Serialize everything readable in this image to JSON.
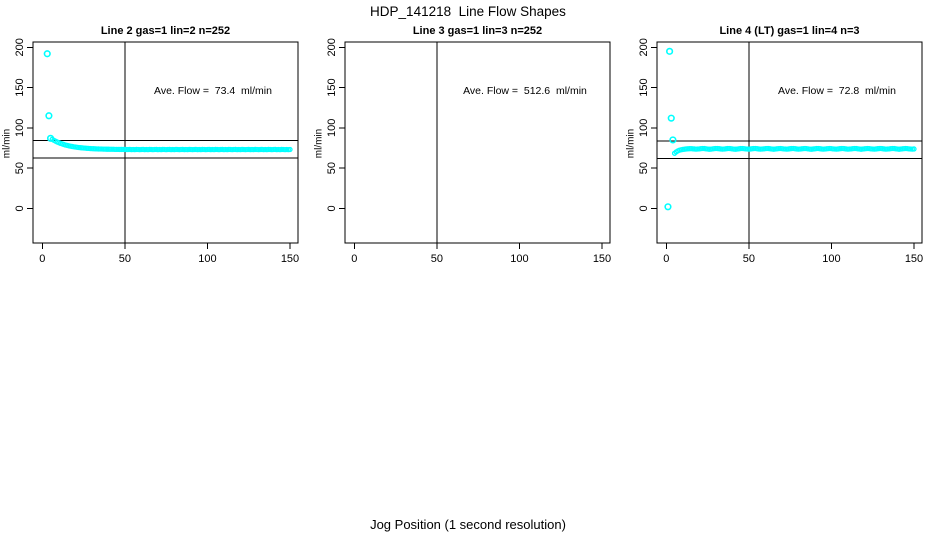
{
  "header": {
    "title": "HDP_141218  Line Flow Shapes"
  },
  "footer": {
    "xlabel": "Jog Position (1 second resolution)"
  },
  "colors": {
    "point": "#00ffff",
    "axis": "#000000",
    "background": "#ffffff"
  },
  "chart_data": [
    {
      "type": "scatter",
      "title": "Line 2 gas=1 lin=2 n=252",
      "ylabel": "ml/min",
      "xlabel": "Jog Position (1 second resolution)",
      "annotation": "Ave. Flow =  73.4  ml/min",
      "ave_flow": 73.4,
      "n": 252,
      "xticks": [
        0,
        50,
        100,
        150
      ],
      "yticks": [
        0,
        50,
        100,
        150,
        200
      ],
      "xlim": [
        -5.5,
        155
      ],
      "ylim": [
        -43,
        207
      ],
      "grid": false,
      "legend": "none",
      "vline_x": 50,
      "hlines": [
        84.4,
        62.4
      ],
      "outlier_points": [
        [
          3,
          192
        ],
        [
          4,
          115
        ],
        [
          5,
          87
        ]
      ],
      "band_points": [
        [
          6,
          85.8
        ],
        [
          7,
          84.6
        ],
        [
          8,
          83.5
        ],
        [
          9,
          82.5
        ],
        [
          10,
          81.6
        ],
        [
          11,
          80.8
        ],
        [
          12,
          80.1
        ],
        [
          13,
          79.4
        ],
        [
          14,
          78.7
        ],
        [
          15,
          78.2
        ],
        [
          16,
          77.7
        ],
        [
          17,
          77.3
        ],
        [
          18,
          76.9
        ],
        [
          19,
          76.5
        ],
        [
          20,
          76.2
        ],
        [
          21,
          75.9
        ],
        [
          22,
          75.6
        ],
        [
          23,
          75.4
        ],
        [
          24,
          75.2
        ],
        [
          25,
          75.0
        ],
        [
          26,
          74.8
        ],
        [
          27,
          74.6
        ],
        [
          28,
          74.5
        ],
        [
          29,
          74.3
        ],
        [
          30,
          74.2
        ],
        [
          31,
          74.1
        ],
        [
          32,
          74.0
        ],
        [
          33,
          73.9
        ],
        [
          34,
          73.8
        ],
        [
          35,
          73.7
        ],
        [
          36,
          73.7
        ],
        [
          37,
          73.6
        ],
        [
          38,
          73.6
        ],
        [
          39,
          73.5
        ],
        [
          40,
          73.5
        ],
        [
          41,
          73.4
        ],
        [
          42,
          73.4
        ],
        [
          43,
          73.4
        ],
        [
          44,
          73.3
        ],
        [
          45,
          73.3
        ],
        [
          46,
          73.3
        ],
        [
          47,
          73.2
        ],
        [
          48,
          73.2
        ],
        [
          49,
          73.2
        ],
        [
          50,
          73.2
        ],
        [
          51,
          73.1
        ],
        [
          52,
          73.1
        ],
        [
          53,
          73.2
        ],
        [
          54,
          73.0
        ],
        [
          55,
          73.1
        ],
        [
          56,
          73.0
        ],
        [
          57,
          73.2
        ],
        [
          58,
          73.1
        ],
        [
          59,
          73.0
        ],
        [
          60,
          73.1
        ],
        [
          61,
          73.2
        ],
        [
          62,
          73.0
        ],
        [
          63,
          73.1
        ],
        [
          64,
          73.0
        ],
        [
          65,
          73.2
        ],
        [
          66,
          73.1
        ],
        [
          67,
          73.0
        ],
        [
          68,
          73.1
        ],
        [
          69,
          73.2
        ],
        [
          70,
          73.0
        ],
        [
          71,
          73.1
        ],
        [
          72,
          73.0
        ],
        [
          73,
          73.2
        ],
        [
          74,
          73.1
        ],
        [
          75,
          73.0
        ],
        [
          76,
          73.1
        ],
        [
          77,
          73.2
        ],
        [
          78,
          73.0
        ],
        [
          79,
          73.1
        ],
        [
          80,
          73.0
        ],
        [
          81,
          73.2
        ],
        [
          82,
          73.1
        ],
        [
          83,
          73.0
        ],
        [
          84,
          73.1
        ],
        [
          85,
          73.2
        ],
        [
          86,
          73.0
        ],
        [
          87,
          73.1
        ],
        [
          88,
          73.0
        ],
        [
          89,
          73.2
        ],
        [
          90,
          73.1
        ],
        [
          91,
          73.0
        ],
        [
          92,
          73.1
        ],
        [
          93,
          73.2
        ],
        [
          94,
          73.0
        ],
        [
          95,
          73.1
        ],
        [
          96,
          73.0
        ],
        [
          97,
          73.2
        ],
        [
          98,
          73.1
        ],
        [
          99,
          73.0
        ],
        [
          100,
          73.1
        ],
        [
          101,
          73.2
        ],
        [
          102,
          73.0
        ],
        [
          103,
          73.1
        ],
        [
          104,
          73.0
        ],
        [
          105,
          73.2
        ],
        [
          106,
          73.1
        ],
        [
          107,
          73.0
        ],
        [
          108,
          73.1
        ],
        [
          109,
          73.2
        ],
        [
          110,
          73.0
        ],
        [
          111,
          73.1
        ],
        [
          112,
          73.0
        ],
        [
          113,
          73.2
        ],
        [
          114,
          73.1
        ],
        [
          115,
          73.0
        ],
        [
          116,
          73.1
        ],
        [
          117,
          73.2
        ],
        [
          118,
          73.0
        ],
        [
          119,
          73.1
        ],
        [
          120,
          73.0
        ],
        [
          121,
          73.2
        ],
        [
          122,
          73.1
        ],
        [
          123,
          73.0
        ],
        [
          124,
          73.1
        ],
        [
          125,
          73.2
        ],
        [
          126,
          73.0
        ],
        [
          127,
          73.1
        ],
        [
          128,
          73.0
        ],
        [
          129,
          73.2
        ],
        [
          130,
          73.1
        ],
        [
          131,
          73.0
        ],
        [
          132,
          73.1
        ],
        [
          133,
          73.2
        ],
        [
          134,
          73.0
        ],
        [
          135,
          73.1
        ],
        [
          136,
          73.0
        ],
        [
          137,
          73.2
        ],
        [
          138,
          73.1
        ],
        [
          139,
          73.0
        ],
        [
          140,
          73.1
        ],
        [
          141,
          73.2
        ],
        [
          142,
          73.0
        ],
        [
          143,
          73.1
        ],
        [
          144,
          73.0
        ],
        [
          145,
          73.2
        ],
        [
          146,
          73.1
        ],
        [
          147,
          73.0
        ],
        [
          148,
          73.1
        ],
        [
          149,
          73.0
        ],
        [
          150,
          73.1
        ]
      ]
    },
    {
      "type": "scatter",
      "title": "Line 3 gas=1 lin=3 n=252",
      "ylabel": "ml/min",
      "xlabel": "Jog Position (1 second resolution)",
      "annotation": "Ave. Flow =  512.6  ml/min",
      "ave_flow": 512.6,
      "n": 252,
      "xticks": [
        0,
        50,
        100,
        150
      ],
      "yticks": [
        0,
        50,
        100,
        150,
        200
      ],
      "xlim": [
        -5.5,
        155
      ],
      "ylim": [
        -43,
        207
      ],
      "grid": false,
      "legend": "none",
      "vline_x": 50,
      "hlines": [],
      "outlier_points": [],
      "band_points": []
    },
    {
      "type": "scatter",
      "title": "Line 4 (LT) gas=1 lin=4 n=3",
      "ylabel": "ml/min",
      "xlabel": "Jog Position (1 second resolution)",
      "annotation": "Ave. Flow =  72.8  ml/min",
      "ave_flow": 72.8,
      "n": 3,
      "xticks": [
        0,
        50,
        100,
        150
      ],
      "yticks": [
        0,
        50,
        100,
        150,
        200
      ],
      "xlim": [
        -5.5,
        155
      ],
      "ylim": [
        -43,
        207
      ],
      "grid": false,
      "legend": "none",
      "vline_x": 50,
      "hlines": [
        83.7,
        61.9
      ],
      "outlier_points": [
        [
          1,
          2
        ],
        [
          2,
          195
        ],
        [
          3,
          112
        ],
        [
          4,
          85
        ]
      ],
      "band_points": [
        [
          5,
          68.4
        ],
        [
          6,
          70.1
        ],
        [
          7,
          71.4
        ],
        [
          8,
          72.3
        ],
        [
          9,
          72.8
        ],
        [
          10,
          73.2
        ],
        [
          11,
          73.5
        ],
        [
          12,
          73.8
        ],
        [
          13,
          74.0
        ],
        [
          14,
          74.1
        ],
        [
          15,
          74.2
        ],
        [
          16,
          74.0
        ],
        [
          17,
          73.8
        ],
        [
          18,
          73.6
        ],
        [
          19,
          73.7
        ],
        [
          20,
          73.9
        ],
        [
          21,
          74.2
        ],
        [
          22,
          74.4
        ],
        [
          23,
          74.3
        ],
        [
          24,
          74.0
        ],
        [
          25,
          73.7
        ],
        [
          26,
          73.5
        ],
        [
          27,
          73.6
        ],
        [
          28,
          73.9
        ],
        [
          29,
          74.2
        ],
        [
          30,
          74.4
        ],
        [
          31,
          74.3
        ],
        [
          32,
          74.1
        ],
        [
          33,
          73.8
        ],
        [
          34,
          73.6
        ],
        [
          35,
          73.7
        ],
        [
          36,
          74.0
        ],
        [
          37,
          74.3
        ],
        [
          38,
          74.4
        ],
        [
          39,
          74.2
        ],
        [
          40,
          73.9
        ],
        [
          41,
          73.6
        ],
        [
          42,
          73.5
        ],
        [
          43,
          73.7
        ],
        [
          44,
          74.0
        ],
        [
          45,
          74.3
        ],
        [
          46,
          74.4
        ],
        [
          47,
          74.2
        ],
        [
          48,
          73.9
        ],
        [
          49,
          73.7
        ],
        [
          50,
          73.6
        ],
        [
          51,
          73.8
        ],
        [
          52,
          74.1
        ],
        [
          53,
          74.3
        ],
        [
          54,
          74.4
        ],
        [
          55,
          74.1
        ],
        [
          56,
          73.8
        ],
        [
          57,
          73.6
        ],
        [
          58,
          73.7
        ],
        [
          59,
          73.9
        ],
        [
          60,
          74.2
        ],
        [
          61,
          74.4
        ],
        [
          62,
          74.3
        ],
        [
          63,
          74.0
        ],
        [
          64,
          73.7
        ],
        [
          65,
          73.5
        ],
        [
          66,
          73.7
        ],
        [
          67,
          74.0
        ],
        [
          68,
          74.2
        ],
        [
          69,
          74.4
        ],
        [
          70,
          74.2
        ],
        [
          71,
          73.9
        ],
        [
          72,
          73.7
        ],
        [
          73,
          73.6
        ],
        [
          74,
          73.8
        ],
        [
          75,
          74.1
        ],
        [
          76,
          74.3
        ],
        [
          77,
          74.4
        ],
        [
          78,
          74.1
        ],
        [
          79,
          73.8
        ],
        [
          80,
          73.6
        ],
        [
          81,
          73.7
        ],
        [
          82,
          74.0
        ],
        [
          83,
          74.2
        ],
        [
          84,
          74.4
        ],
        [
          85,
          74.2
        ],
        [
          86,
          73.9
        ],
        [
          87,
          73.6
        ],
        [
          88,
          73.5
        ],
        [
          89,
          73.8
        ],
        [
          90,
          74.0
        ],
        [
          91,
          74.3
        ],
        [
          92,
          74.4
        ],
        [
          93,
          74.1
        ],
        [
          94,
          73.8
        ],
        [
          95,
          73.6
        ],
        [
          96,
          73.7
        ],
        [
          97,
          74.0
        ],
        [
          98,
          74.2
        ],
        [
          99,
          74.4
        ],
        [
          100,
          74.2
        ],
        [
          101,
          73.9
        ],
        [
          102,
          73.7
        ],
        [
          103,
          73.6
        ],
        [
          104,
          73.8
        ],
        [
          105,
          74.1
        ],
        [
          106,
          74.3
        ],
        [
          107,
          74.4
        ],
        [
          108,
          74.1
        ],
        [
          109,
          73.8
        ],
        [
          110,
          73.6
        ],
        [
          111,
          73.7
        ],
        [
          112,
          73.9
        ],
        [
          113,
          74.2
        ],
        [
          114,
          74.4
        ],
        [
          115,
          74.3
        ],
        [
          116,
          74.0
        ],
        [
          117,
          73.7
        ],
        [
          118,
          73.5
        ],
        [
          119,
          73.7
        ],
        [
          120,
          74.0
        ],
        [
          121,
          74.2
        ],
        [
          122,
          74.4
        ],
        [
          123,
          74.2
        ],
        [
          124,
          73.9
        ],
        [
          125,
          73.7
        ],
        [
          126,
          73.6
        ],
        [
          127,
          73.8
        ],
        [
          128,
          74.1
        ],
        [
          129,
          74.3
        ],
        [
          130,
          74.4
        ],
        [
          131,
          74.1
        ],
        [
          132,
          73.8
        ],
        [
          133,
          73.6
        ],
        [
          134,
          73.7
        ],
        [
          135,
          73.9
        ],
        [
          136,
          74.2
        ],
        [
          137,
          74.4
        ],
        [
          138,
          74.3
        ],
        [
          139,
          74.0
        ],
        [
          140,
          73.7
        ],
        [
          141,
          73.5
        ],
        [
          142,
          73.7
        ],
        [
          143,
          74.0
        ],
        [
          144,
          74.2
        ],
        [
          145,
          74.4
        ],
        [
          146,
          74.2
        ],
        [
          147,
          73.9
        ],
        [
          148,
          73.7
        ],
        [
          149,
          73.6
        ],
        [
          150,
          73.8
        ]
      ]
    }
  ]
}
